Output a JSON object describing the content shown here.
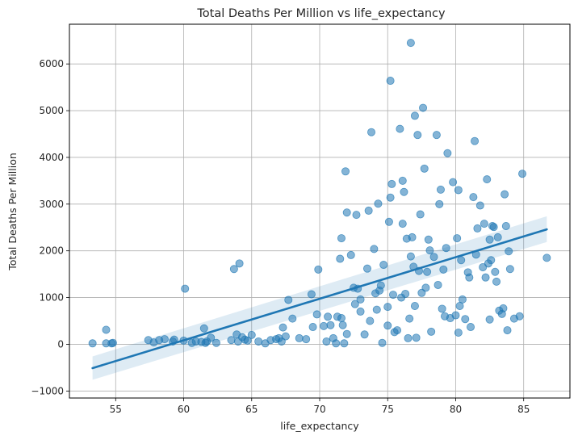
{
  "chart_data": {
    "type": "scatter",
    "title": "Total Deaths Per Million vs life_expectancy",
    "xlabel": "life_expectancy",
    "ylabel": "Total Deaths Per Million",
    "xlim": [
      51.6,
      88.4
    ],
    "ylim": [
      -1150,
      6850
    ],
    "xticks": [
      55,
      60,
      65,
      70,
      75,
      80,
      85
    ],
    "yticks": [
      -1000,
      0,
      1000,
      2000,
      3000,
      4000,
      5000,
      6000
    ],
    "grid": true,
    "colors": {
      "points": "#1f77b4",
      "line": "#1f77b4",
      "band": "#1f77b4"
    },
    "regression": {
      "x": [
        53.3,
        86.7
      ],
      "y": [
        -510,
        2460
      ],
      "ci_upper": [
        -260,
        2740
      ],
      "ci_lower": [
        -760,
        2190
      ]
    },
    "points": [
      [
        53.3,
        20
      ],
      [
        54.3,
        20
      ],
      [
        54.3,
        310
      ],
      [
        54.7,
        20
      ],
      [
        54.8,
        30
      ],
      [
        57.4,
        90
      ],
      [
        57.8,
        40
      ],
      [
        58.2,
        90
      ],
      [
        58.6,
        110
      ],
      [
        59.2,
        60
      ],
      [
        59.3,
        100
      ],
      [
        60.0,
        80
      ],
      [
        60.1,
        1190
      ],
      [
        60.6,
        30
      ],
      [
        60.9,
        60
      ],
      [
        61.3,
        50
      ],
      [
        61.5,
        340
      ],
      [
        61.6,
        30
      ],
      [
        61.7,
        60
      ],
      [
        62.0,
        140
      ],
      [
        62.4,
        30
      ],
      [
        63.5,
        90
      ],
      [
        63.7,
        1610
      ],
      [
        63.9,
        210
      ],
      [
        64.0,
        60
      ],
      [
        64.1,
        1730
      ],
      [
        64.3,
        150
      ],
      [
        64.5,
        100
      ],
      [
        64.7,
        80
      ],
      [
        65.0,
        200
      ],
      [
        65.5,
        60
      ],
      [
        66.0,
        20
      ],
      [
        66.4,
        90
      ],
      [
        66.8,
        110
      ],
      [
        67.0,
        130
      ],
      [
        67.2,
        60
      ],
      [
        67.3,
        360
      ],
      [
        67.5,
        170
      ],
      [
        67.7,
        950
      ],
      [
        68.0,
        550
      ],
      [
        68.5,
        130
      ],
      [
        69.0,
        110
      ],
      [
        69.4,
        1070
      ],
      [
        69.5,
        370
      ],
      [
        69.8,
        640
      ],
      [
        69.9,
        1600
      ],
      [
        70.3,
        390
      ],
      [
        70.5,
        60
      ],
      [
        70.6,
        590
      ],
      [
        70.8,
        410
      ],
      [
        71.0,
        130
      ],
      [
        71.2,
        20
      ],
      [
        71.3,
        590
      ],
      [
        71.5,
        1830
      ],
      [
        71.6,
        560
      ],
      [
        71.6,
        2270
      ],
      [
        71.7,
        410
      ],
      [
        71.8,
        20
      ],
      [
        71.9,
        3700
      ],
      [
        72.0,
        220
      ],
      [
        72.0,
        2820
      ],
      [
        72.3,
        1910
      ],
      [
        72.5,
        1210
      ],
      [
        72.6,
        860
      ],
      [
        72.7,
        2770
      ],
      [
        72.8,
        1190
      ],
      [
        73.0,
        700
      ],
      [
        73.0,
        960
      ],
      [
        73.3,
        210
      ],
      [
        73.5,
        1620
      ],
      [
        73.6,
        2860
      ],
      [
        73.7,
        500
      ],
      [
        73.8,
        4540
      ],
      [
        74.0,
        2040
      ],
      [
        74.1,
        1090
      ],
      [
        74.2,
        740
      ],
      [
        74.3,
        3010
      ],
      [
        74.4,
        1150
      ],
      [
        74.5,
        1260
      ],
      [
        74.6,
        30
      ],
      [
        74.7,
        1700
      ],
      [
        75.0,
        400
      ],
      [
        75.0,
        800
      ],
      [
        75.1,
        2620
      ],
      [
        75.2,
        3140
      ],
      [
        75.2,
        5640
      ],
      [
        75.3,
        3430
      ],
      [
        75.4,
        1060
      ],
      [
        75.5,
        260
      ],
      [
        75.7,
        300
      ],
      [
        75.9,
        4610
      ],
      [
        76.0,
        1000
      ],
      [
        76.1,
        3500
      ],
      [
        76.1,
        2580
      ],
      [
        76.2,
        3260
      ],
      [
        76.3,
        1080
      ],
      [
        76.4,
        2260
      ],
      [
        76.5,
        130
      ],
      [
        76.6,
        550
      ],
      [
        76.7,
        1880
      ],
      [
        76.7,
        6450
      ],
      [
        76.8,
        2290
      ],
      [
        76.9,
        1660
      ],
      [
        77.0,
        4890
      ],
      [
        77.0,
        820
      ],
      [
        77.1,
        140
      ],
      [
        77.2,
        4480
      ],
      [
        77.3,
        1570
      ],
      [
        77.4,
        2780
      ],
      [
        77.5,
        1100
      ],
      [
        77.6,
        5060
      ],
      [
        77.7,
        3760
      ],
      [
        77.8,
        1210
      ],
      [
        77.9,
        1550
      ],
      [
        78.0,
        2240
      ],
      [
        78.1,
        2010
      ],
      [
        78.2,
        270
      ],
      [
        78.4,
        1870
      ],
      [
        78.6,
        4480
      ],
      [
        78.7,
        1270
      ],
      [
        78.8,
        3000
      ],
      [
        78.9,
        3310
      ],
      [
        79.0,
        760
      ],
      [
        79.1,
        1600
      ],
      [
        79.2,
        600
      ],
      [
        79.3,
        2060
      ],
      [
        79.4,
        4090
      ],
      [
        79.6,
        560
      ],
      [
        79.8,
        3470
      ],
      [
        80.0,
        620
      ],
      [
        80.1,
        2270
      ],
      [
        80.2,
        3300
      ],
      [
        80.2,
        250
      ],
      [
        80.3,
        820
      ],
      [
        80.4,
        1800
      ],
      [
        80.5,
        960
      ],
      [
        80.7,
        540
      ],
      [
        80.9,
        1540
      ],
      [
        81.0,
        1430
      ],
      [
        81.1,
        370
      ],
      [
        81.3,
        3150
      ],
      [
        81.4,
        4350
      ],
      [
        81.5,
        1920
      ],
      [
        81.6,
        2480
      ],
      [
        81.8,
        2970
      ],
      [
        82.0,
        1650
      ],
      [
        82.1,
        2580
      ],
      [
        82.2,
        1430
      ],
      [
        82.3,
        3530
      ],
      [
        82.4,
        1730
      ],
      [
        82.5,
        2240
      ],
      [
        82.5,
        530
      ],
      [
        82.6,
        1800
      ],
      [
        82.7,
        2530
      ],
      [
        82.8,
        2510
      ],
      [
        82.9,
        1550
      ],
      [
        83.0,
        1340
      ],
      [
        83.1,
        2290
      ],
      [
        83.2,
        720
      ],
      [
        83.4,
        650
      ],
      [
        83.5,
        770
      ],
      [
        83.6,
        3210
      ],
      [
        83.7,
        2530
      ],
      [
        83.8,
        300
      ],
      [
        83.9,
        1990
      ],
      [
        84.0,
        1610
      ],
      [
        84.3,
        550
      ],
      [
        84.7,
        600
      ],
      [
        84.9,
        3650
      ],
      [
        86.7,
        1850
      ]
    ]
  }
}
